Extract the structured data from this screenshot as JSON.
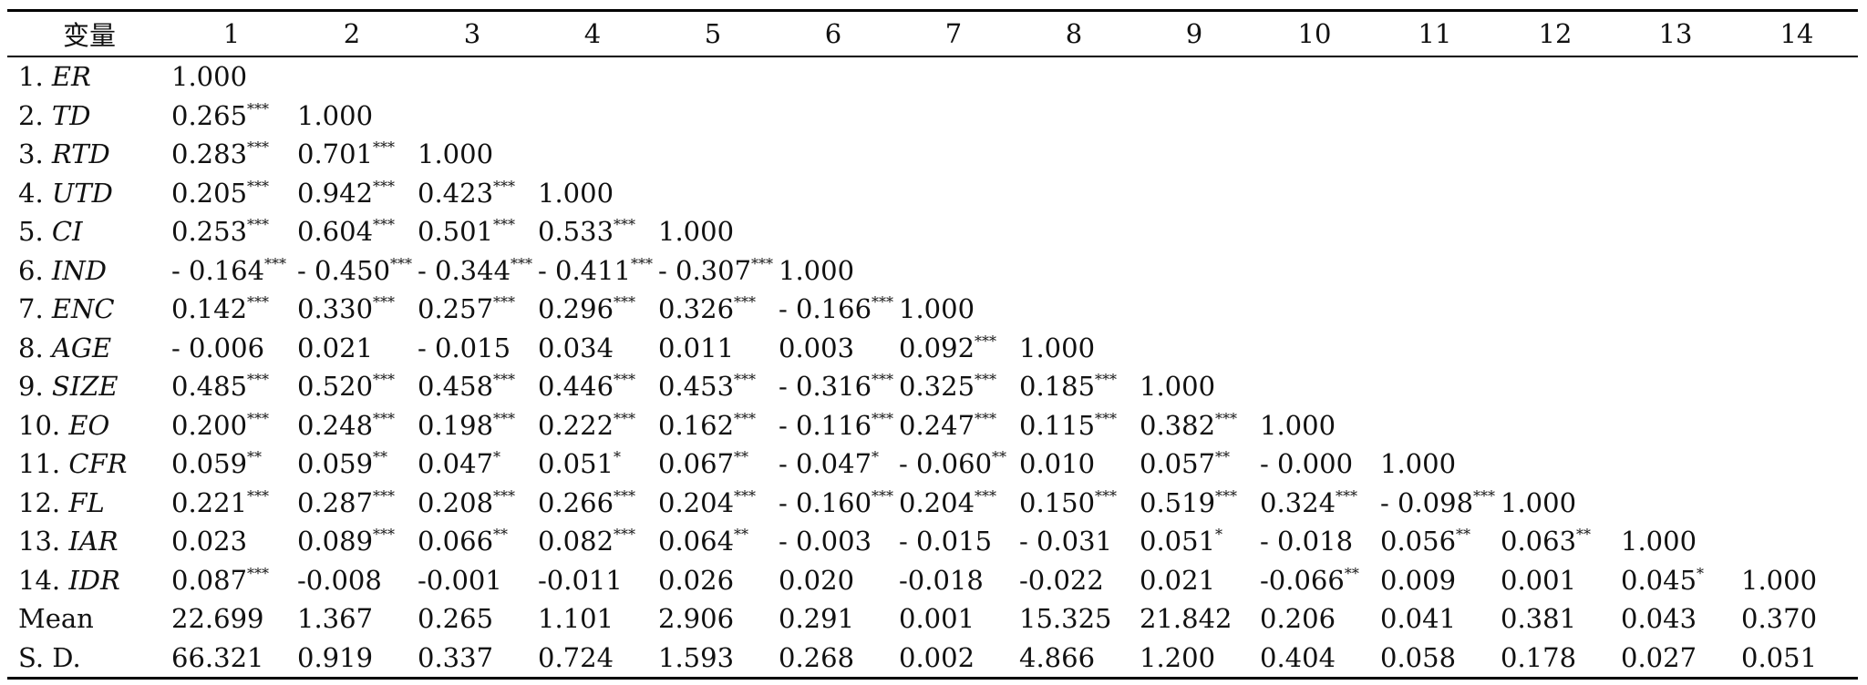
{
  "table": {
    "header": [
      "变量",
      "1",
      "2",
      "3",
      "4",
      "5",
      "6",
      "7",
      "8",
      "9",
      "10",
      "11",
      "12",
      "13",
      "14"
    ],
    "rows": [
      {
        "num": "1.",
        "var": "ER",
        "cells": [
          [
            "1.000",
            ""
          ]
        ]
      },
      {
        "num": "2.",
        "var": "TD",
        "cells": [
          [
            "0.265",
            "***"
          ],
          [
            "1.000",
            ""
          ]
        ]
      },
      {
        "num": "3.",
        "var": "RTD",
        "cells": [
          [
            "0.283",
            "***"
          ],
          [
            "0.701",
            "***"
          ],
          [
            "1.000",
            ""
          ]
        ]
      },
      {
        "num": "4.",
        "var": "UTD",
        "cells": [
          [
            "0.205",
            "***"
          ],
          [
            "0.942",
            "***"
          ],
          [
            "0.423",
            "***"
          ],
          [
            "1.000",
            ""
          ]
        ]
      },
      {
        "num": "5.",
        "var": "CI",
        "cells": [
          [
            "0.253",
            "***"
          ],
          [
            "0.604",
            "***"
          ],
          [
            "0.501",
            "***"
          ],
          [
            "0.533",
            "***"
          ],
          [
            "1.000",
            ""
          ]
        ]
      },
      {
        "num": "6.",
        "var": "IND",
        "cells": [
          [
            "- 0.164",
            "***"
          ],
          [
            "- 0.450",
            "***"
          ],
          [
            "- 0.344",
            "***"
          ],
          [
            "- 0.411",
            "***"
          ],
          [
            "- 0.307",
            "***"
          ],
          [
            "1.000",
            ""
          ]
        ]
      },
      {
        "num": "7.",
        "var": "ENC",
        "cells": [
          [
            "0.142",
            "***"
          ],
          [
            "0.330",
            "***"
          ],
          [
            "0.257",
            "***"
          ],
          [
            "0.296",
            "***"
          ],
          [
            "0.326",
            "***"
          ],
          [
            "- 0.166",
            "***"
          ],
          [
            "1.000",
            ""
          ]
        ]
      },
      {
        "num": "8.",
        "var": "AGE",
        "cells": [
          [
            "- 0.006",
            ""
          ],
          [
            "0.021",
            ""
          ],
          [
            "- 0.015",
            ""
          ],
          [
            "0.034",
            ""
          ],
          [
            "0.011",
            ""
          ],
          [
            "0.003",
            ""
          ],
          [
            "0.092",
            "***"
          ],
          [
            "1.000",
            ""
          ]
        ]
      },
      {
        "num": "9.",
        "var": "SIZE",
        "cells": [
          [
            "0.485",
            "***"
          ],
          [
            "0.520",
            "***"
          ],
          [
            "0.458",
            "***"
          ],
          [
            "0.446",
            "***"
          ],
          [
            "0.453",
            "***"
          ],
          [
            "- 0.316",
            "***"
          ],
          [
            "0.325",
            "***"
          ],
          [
            "0.185",
            "***"
          ],
          [
            "1.000",
            ""
          ]
        ]
      },
      {
        "num": "10.",
        "var": "EO",
        "cells": [
          [
            "0.200",
            "***"
          ],
          [
            "0.248",
            "***"
          ],
          [
            "0.198",
            "***"
          ],
          [
            "0.222",
            "***"
          ],
          [
            "0.162",
            "***"
          ],
          [
            "- 0.116",
            "***"
          ],
          [
            "0.247",
            "***"
          ],
          [
            "0.115",
            "***"
          ],
          [
            "0.382",
            "***"
          ],
          [
            "1.000",
            ""
          ]
        ]
      },
      {
        "num": "11.",
        "var": "CFR",
        "cells": [
          [
            "0.059",
            "**"
          ],
          [
            "0.059",
            "**"
          ],
          [
            "0.047",
            "*"
          ],
          [
            "0.051",
            "*"
          ],
          [
            "0.067",
            "**"
          ],
          [
            "- 0.047",
            "*"
          ],
          [
            "- 0.060",
            "**"
          ],
          [
            "0.010",
            ""
          ],
          [
            "0.057",
            "**"
          ],
          [
            "- 0.000",
            ""
          ],
          [
            "1.000",
            ""
          ]
        ]
      },
      {
        "num": "12.",
        "var": "FL",
        "cells": [
          [
            "0.221",
            "***"
          ],
          [
            "0.287",
            "***"
          ],
          [
            "0.208",
            "***"
          ],
          [
            "0.266",
            "***"
          ],
          [
            "0.204",
            "***"
          ],
          [
            "- 0.160",
            "***"
          ],
          [
            "0.204",
            "***"
          ],
          [
            "0.150",
            "***"
          ],
          [
            "0.519",
            "***"
          ],
          [
            "0.324",
            "***"
          ],
          [
            "- 0.098",
            "***"
          ],
          [
            "1.000",
            ""
          ]
        ]
      },
      {
        "num": "13.",
        "var": "IAR",
        "cells": [
          [
            "0.023",
            ""
          ],
          [
            "0.089",
            "***"
          ],
          [
            "0.066",
            "**"
          ],
          [
            "0.082",
            "***"
          ],
          [
            "0.064",
            "**"
          ],
          [
            "- 0.003",
            ""
          ],
          [
            "- 0.015",
            ""
          ],
          [
            "- 0.031",
            ""
          ],
          [
            "0.051",
            "*"
          ],
          [
            "- 0.018",
            ""
          ],
          [
            "0.056",
            "**"
          ],
          [
            "0.063",
            "**"
          ],
          [
            "1.000",
            ""
          ]
        ]
      },
      {
        "num": "14.",
        "var": "IDR",
        "cells": [
          [
            "0.087",
            "***"
          ],
          [
            "-0.008",
            ""
          ],
          [
            "-0.001",
            ""
          ],
          [
            "-0.011",
            ""
          ],
          [
            "0.026",
            ""
          ],
          [
            "0.020",
            ""
          ],
          [
            "-0.018",
            ""
          ],
          [
            "-0.022",
            ""
          ],
          [
            "0.021",
            ""
          ],
          [
            "-0.066",
            "**"
          ],
          [
            "0.009",
            ""
          ],
          [
            "0.001",
            ""
          ],
          [
            "0.045",
            "*"
          ],
          [
            "1.000",
            ""
          ]
        ]
      },
      {
        "num": "",
        "var": "Mean",
        "plain": true,
        "cells": [
          [
            "22.699",
            ""
          ],
          [
            "1.367",
            ""
          ],
          [
            "0.265",
            ""
          ],
          [
            "1.101",
            ""
          ],
          [
            "2.906",
            ""
          ],
          [
            "0.291",
            ""
          ],
          [
            "0.001",
            ""
          ],
          [
            "15.325",
            ""
          ],
          [
            "21.842",
            ""
          ],
          [
            "0.206",
            ""
          ],
          [
            "0.041",
            ""
          ],
          [
            "0.381",
            ""
          ],
          [
            "0.043",
            ""
          ],
          [
            "0.370",
            ""
          ]
        ]
      },
      {
        "num": "",
        "var": "S. D.",
        "plain": true,
        "cells": [
          [
            "66.321",
            ""
          ],
          [
            "0.919",
            ""
          ],
          [
            "0.337",
            ""
          ],
          [
            "0.724",
            ""
          ],
          [
            "1.593",
            ""
          ],
          [
            "0.268",
            ""
          ],
          [
            "0.002",
            ""
          ],
          [
            "4.866",
            ""
          ],
          [
            "1.200",
            ""
          ],
          [
            "0.404",
            ""
          ],
          [
            "0.058",
            ""
          ],
          [
            "0.178",
            ""
          ],
          [
            "0.027",
            ""
          ],
          [
            "0.051",
            ""
          ]
        ]
      }
    ]
  }
}
